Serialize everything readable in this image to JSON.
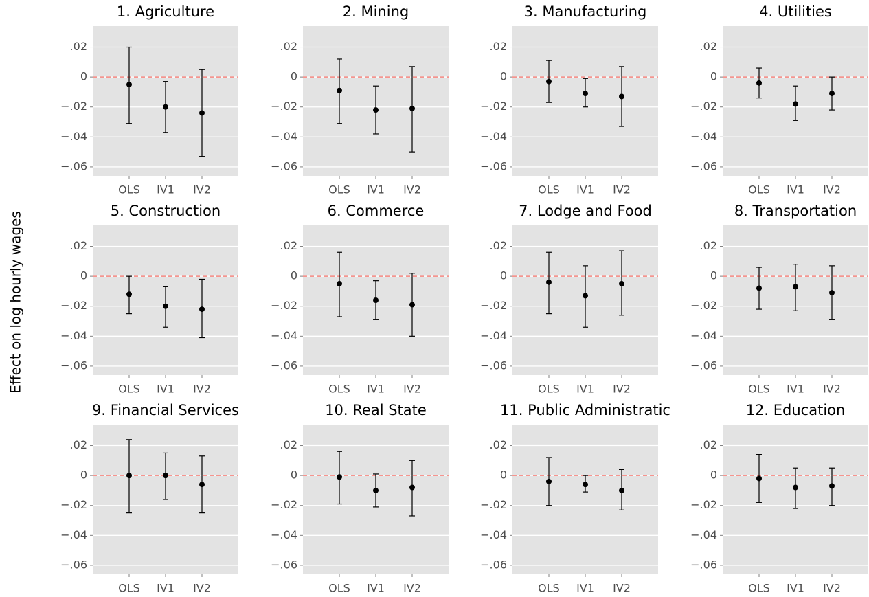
{
  "ylabel": "Effect on log hourly wages",
  "chart_data": [
    {
      "type": "errorbar",
      "title": "1. Agriculture",
      "categories": [
        "OLS",
        "IV1",
        "IV2"
      ],
      "values": [
        -0.005,
        -0.02,
        -0.024
      ],
      "lower": [
        -0.031,
        -0.037,
        -0.053
      ],
      "upper": [
        0.02,
        -0.003,
        0.005
      ],
      "color": "#000000",
      "reference_line": {
        "value": 0,
        "color": "#f8766d"
      },
      "grid": true,
      "ylim": [
        -0.066,
        0.034
      ],
      "yticks": [
        {
          "value": 0.02,
          "label": ".02"
        },
        0,
        {
          "value": -0.02,
          "label": "−.02"
        },
        {
          "value": -0.04,
          "label": "−.04"
        },
        {
          "value": -0.06,
          "label": "−.06"
        }
      ]
    },
    {
      "type": "errorbar",
      "title": "2. Mining",
      "categories": [
        "OLS",
        "IV1",
        "IV2"
      ],
      "values": [
        -0.009,
        -0.022,
        -0.021
      ],
      "lower": [
        -0.031,
        -0.038,
        -0.05
      ],
      "upper": [
        0.012,
        -0.006,
        0.007
      ],
      "color": "#000000",
      "reference_line": {
        "value": 0,
        "color": "#f8766d"
      },
      "grid": true,
      "ylim": [
        -0.066,
        0.034
      ],
      "yticks": [
        {
          "value": 0.02,
          "label": ".02"
        },
        0,
        {
          "value": -0.02,
          "label": "−.02"
        },
        {
          "value": -0.04,
          "label": "−.04"
        },
        {
          "value": -0.06,
          "label": "−.06"
        }
      ]
    },
    {
      "type": "errorbar",
      "title": "3. Manufacturing",
      "categories": [
        "OLS",
        "IV1",
        "IV2"
      ],
      "values": [
        -0.003,
        -0.011,
        -0.013
      ],
      "lower": [
        -0.017,
        -0.02,
        -0.033
      ],
      "upper": [
        0.011,
        -0.001,
        0.007
      ],
      "color": "#000000",
      "reference_line": {
        "value": 0,
        "color": "#f8766d"
      },
      "grid": true,
      "ylim": [
        -0.066,
        0.034
      ],
      "yticks": [
        {
          "value": 0.02,
          "label": ".02"
        },
        0,
        {
          "value": -0.02,
          "label": "−.02"
        },
        {
          "value": -0.04,
          "label": "−.04"
        },
        {
          "value": -0.06,
          "label": "−.06"
        }
      ]
    },
    {
      "type": "errorbar",
      "title": "4. Utilities",
      "categories": [
        "OLS",
        "IV1",
        "IV2"
      ],
      "values": [
        -0.004,
        -0.018,
        -0.011
      ],
      "lower": [
        -0.014,
        -0.029,
        -0.022
      ],
      "upper": [
        0.006,
        -0.006,
        0.0
      ],
      "color": "#000000",
      "reference_line": {
        "value": 0,
        "color": "#f8766d"
      },
      "grid": true,
      "ylim": [
        -0.066,
        0.034
      ],
      "yticks": [
        {
          "value": 0.02,
          "label": ".02"
        },
        0,
        {
          "value": -0.02,
          "label": "−.02"
        },
        {
          "value": -0.04,
          "label": "−.04"
        },
        {
          "value": -0.06,
          "label": "−.06"
        }
      ]
    },
    {
      "type": "errorbar",
      "title": "5. Construction",
      "categories": [
        "OLS",
        "IV1",
        "IV2"
      ],
      "values": [
        -0.012,
        -0.02,
        -0.022
      ],
      "lower": [
        -0.025,
        -0.034,
        -0.041
      ],
      "upper": [
        0.0,
        -0.007,
        -0.002
      ],
      "color": "#000000",
      "reference_line": {
        "value": 0,
        "color": "#f8766d"
      },
      "grid": true,
      "ylim": [
        -0.066,
        0.034
      ],
      "yticks": [
        {
          "value": 0.02,
          "label": ".02"
        },
        0,
        {
          "value": -0.02,
          "label": "−.02"
        },
        {
          "value": -0.04,
          "label": "−.04"
        },
        {
          "value": -0.06,
          "label": "−.06"
        }
      ]
    },
    {
      "type": "errorbar",
      "title": "6. Commerce",
      "categories": [
        "OLS",
        "IV1",
        "IV2"
      ],
      "values": [
        -0.005,
        -0.016,
        -0.019
      ],
      "lower": [
        -0.027,
        -0.029,
        -0.04
      ],
      "upper": [
        0.016,
        -0.003,
        0.002
      ],
      "color": "#000000",
      "reference_line": {
        "value": 0,
        "color": "#f8766d"
      },
      "grid": true,
      "ylim": [
        -0.066,
        0.034
      ],
      "yticks": [
        {
          "value": 0.02,
          "label": ".02"
        },
        0,
        {
          "value": -0.02,
          "label": "−.02"
        },
        {
          "value": -0.04,
          "label": "−.04"
        },
        {
          "value": -0.06,
          "label": "−.06"
        }
      ]
    },
    {
      "type": "errorbar",
      "title": "7. Lodge and Food",
      "categories": [
        "OLS",
        "IV1",
        "IV2"
      ],
      "values": [
        -0.004,
        -0.013,
        -0.005
      ],
      "lower": [
        -0.025,
        -0.034,
        -0.026
      ],
      "upper": [
        0.016,
        0.007,
        0.017
      ],
      "color": "#000000",
      "reference_line": {
        "value": 0,
        "color": "#f8766d"
      },
      "grid": true,
      "ylim": [
        -0.066,
        0.034
      ],
      "yticks": [
        {
          "value": 0.02,
          "label": ".02"
        },
        0,
        {
          "value": -0.02,
          "label": "−.02"
        },
        {
          "value": -0.04,
          "label": "−.04"
        },
        {
          "value": -0.06,
          "label": "−.06"
        }
      ]
    },
    {
      "type": "errorbar",
      "title": "8. Transportation",
      "categories": [
        "OLS",
        "IV1",
        "IV2"
      ],
      "values": [
        -0.008,
        -0.007,
        -0.011
      ],
      "lower": [
        -0.022,
        -0.023,
        -0.029
      ],
      "upper": [
        0.006,
        0.008,
        0.007
      ],
      "color": "#000000",
      "reference_line": {
        "value": 0,
        "color": "#f8766d"
      },
      "grid": true,
      "ylim": [
        -0.066,
        0.034
      ],
      "yticks": [
        {
          "value": 0.02,
          "label": ".02"
        },
        0,
        {
          "value": -0.02,
          "label": "−.02"
        },
        {
          "value": -0.04,
          "label": "−.04"
        },
        {
          "value": -0.06,
          "label": "−.06"
        }
      ]
    },
    {
      "type": "errorbar",
      "title": "9. Financial Services",
      "categories": [
        "OLS",
        "IV1",
        "IV2"
      ],
      "values": [
        0.0,
        0.0,
        -0.006
      ],
      "lower": [
        -0.025,
        -0.016,
        -0.025
      ],
      "upper": [
        0.024,
        0.015,
        0.013
      ],
      "color": "#000000",
      "reference_line": {
        "value": 0,
        "color": "#f8766d"
      },
      "grid": true,
      "ylim": [
        -0.066,
        0.034
      ],
      "yticks": [
        {
          "value": 0.02,
          "label": ".02"
        },
        0,
        {
          "value": -0.02,
          "label": "−.02"
        },
        {
          "value": -0.04,
          "label": "−.04"
        },
        {
          "value": -0.06,
          "label": "−.06"
        }
      ]
    },
    {
      "type": "errorbar",
      "title": "10. Real State",
      "categories": [
        "OLS",
        "IV1",
        "IV2"
      ],
      "values": [
        -0.001,
        -0.01,
        -0.008
      ],
      "lower": [
        -0.019,
        -0.021,
        -0.027
      ],
      "upper": [
        0.016,
        0.001,
        0.01
      ],
      "color": "#000000",
      "reference_line": {
        "value": 0,
        "color": "#f8766d"
      },
      "grid": true,
      "ylim": [
        -0.066,
        0.034
      ],
      "yticks": [
        {
          "value": 0.02,
          "label": ".02"
        },
        0,
        {
          "value": -0.02,
          "label": "−.02"
        },
        {
          "value": -0.04,
          "label": "−.04"
        },
        {
          "value": -0.06,
          "label": "−.06"
        }
      ]
    },
    {
      "type": "errorbar",
      "title": "11. Public Administratic",
      "categories": [
        "OLS",
        "IV1",
        "IV2"
      ],
      "values": [
        -0.004,
        -0.006,
        -0.01
      ],
      "lower": [
        -0.02,
        -0.011,
        -0.023
      ],
      "upper": [
        0.012,
        0.0,
        0.004
      ],
      "color": "#000000",
      "reference_line": {
        "value": 0,
        "color": "#f8766d"
      },
      "grid": true,
      "ylim": [
        -0.066,
        0.034
      ],
      "yticks": [
        {
          "value": 0.02,
          "label": ".02"
        },
        0,
        {
          "value": -0.02,
          "label": "−.02"
        },
        {
          "value": -0.04,
          "label": "−.04"
        },
        {
          "value": -0.06,
          "label": "−.06"
        }
      ]
    },
    {
      "type": "errorbar",
      "title": "12. Education",
      "categories": [
        "OLS",
        "IV1",
        "IV2"
      ],
      "values": [
        -0.002,
        -0.008,
        -0.007
      ],
      "lower": [
        -0.018,
        -0.022,
        -0.02
      ],
      "upper": [
        0.014,
        0.005,
        0.005
      ],
      "color": "#000000",
      "reference_line": {
        "value": 0,
        "color": "#f8766d"
      },
      "grid": true,
      "ylim": [
        -0.066,
        0.034
      ],
      "yticks": [
        {
          "value": 0.02,
          "label": ".02"
        },
        0,
        {
          "value": -0.02,
          "label": "−.02"
        },
        {
          "value": -0.04,
          "label": "−.04"
        },
        {
          "value": -0.06,
          "label": "−.06"
        }
      ]
    }
  ]
}
